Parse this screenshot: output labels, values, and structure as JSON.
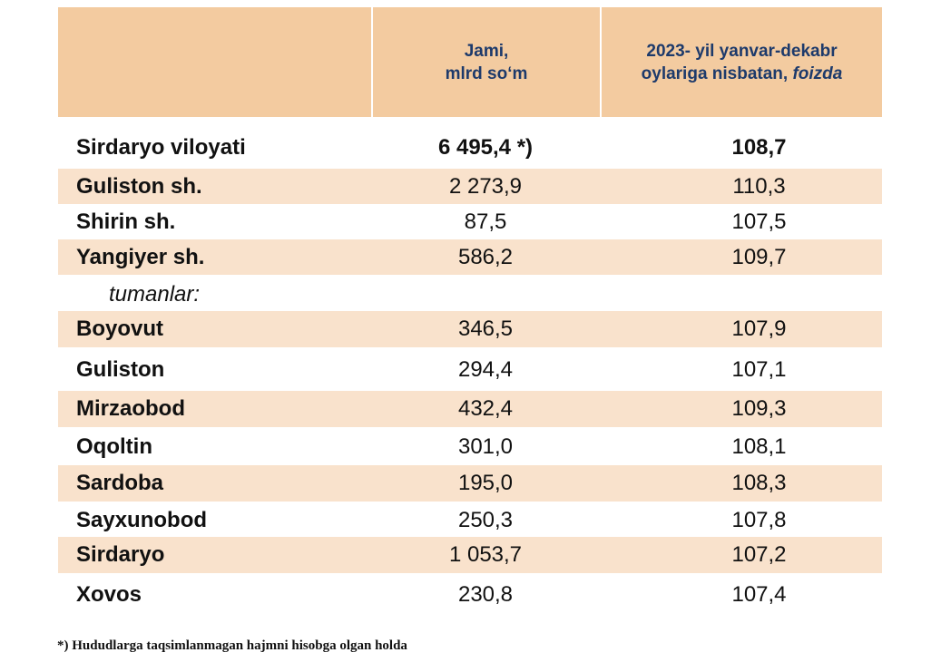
{
  "header": {
    "col1_line1": "Jami,",
    "col1_line2": "mlrd so‘m",
    "col2_line1": "2023- yil yanvar-dekabr",
    "col2_line2_text": "oylariga nisbatan, ",
    "col2_line2_italic": "foizda"
  },
  "rows": [
    {
      "name": "Sirdaryo viloyati",
      "total": "6 495,4 *)",
      "percent": "108,7"
    },
    {
      "name": "Guliston  sh.",
      "total": "2 273,9",
      "percent": "110,3"
    },
    {
      "name": "Shirin sh.",
      "total": "87,5",
      "percent": "107,5"
    },
    {
      "name": "Yangiyer sh.",
      "total": "586,2",
      "percent": "109,7"
    },
    {
      "name": "tumanlar:",
      "total": "",
      "percent": ""
    },
    {
      "name": "Boyovut",
      "total": "346,5",
      "percent": "107,9"
    },
    {
      "name": "Guliston",
      "total": "294,4",
      "percent": "107,1"
    },
    {
      "name": "Mirzaobod",
      "total": "432,4",
      "percent": "109,3"
    },
    {
      "name": "Oqoltin",
      "total": "301,0",
      "percent": "108,1"
    },
    {
      "name": "Sardoba",
      "total": "195,0",
      "percent": "108,3"
    },
    {
      "name": "Sayxunobod",
      "total": "250,3",
      "percent": "107,8"
    },
    {
      "name": "Sirdaryo",
      "total": "1 053,7",
      "percent": "107,2"
    },
    {
      "name": "Xovos",
      "total": "230,8",
      "percent": "107,4"
    }
  ],
  "footnote": "*) Hududlarga taqsimlanmagan hajmni hisobga olgan holda",
  "colors": {
    "header_bg": "#f3cba0",
    "row_shade": "#f9e2cc",
    "header_text": "#1d3a6b"
  }
}
